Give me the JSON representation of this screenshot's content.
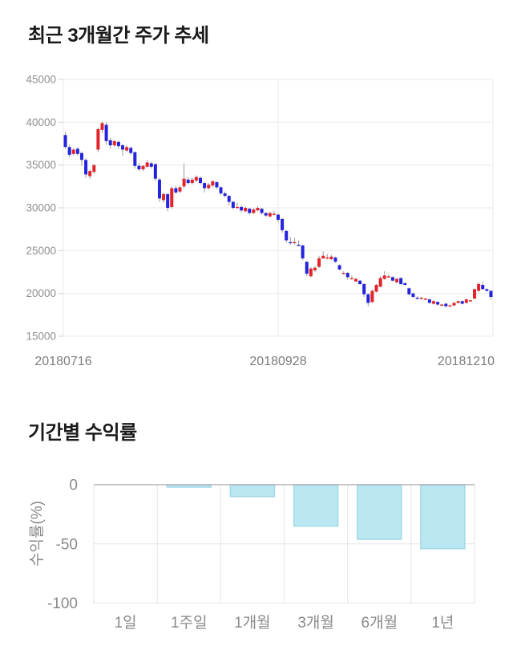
{
  "sections": {
    "price_trend": {
      "title": "최근 3개월간 주가 추세"
    },
    "returns": {
      "title": "기간별 수익률"
    }
  },
  "chart_data": [
    {
      "type": "candlestick",
      "title": "최근 3개월간 주가 추세",
      "x_tick_labels": [
        "20180716",
        "20180928",
        "20181210"
      ],
      "y_ticks": [
        45000,
        40000,
        35000,
        30000,
        25000,
        20000,
        15000
      ],
      "ylim": [
        15000,
        45000
      ],
      "grid": "on",
      "colors": {
        "up": "#e3242b",
        "down": "#2424dd",
        "wick": "#999999",
        "grid": "#e9e9e9",
        "tick": "#cccccc"
      },
      "candles": [
        [
          38500,
          38900,
          36900,
          37100
        ],
        [
          37100,
          37400,
          35900,
          36200
        ],
        [
          36300,
          37000,
          36100,
          36800
        ],
        [
          36900,
          37100,
          36100,
          36300
        ],
        [
          36400,
          36600,
          34900,
          35600
        ],
        [
          35600,
          35800,
          33500,
          33900
        ],
        [
          33700,
          34500,
          33400,
          34300
        ],
        [
          34200,
          35100,
          34000,
          35000
        ],
        [
          36800,
          39400,
          36500,
          39200
        ],
        [
          39100,
          40100,
          38800,
          39900
        ],
        [
          39700,
          40000,
          37400,
          37800
        ],
        [
          37900,
          38200,
          36900,
          37300
        ],
        [
          37300,
          37900,
          37100,
          37800
        ],
        [
          37700,
          37900,
          36900,
          37200
        ],
        [
          37300,
          37500,
          36100,
          36800
        ],
        [
          36700,
          37300,
          36500,
          37100
        ],
        [
          37000,
          37200,
          36200,
          36400
        ],
        [
          36500,
          36600,
          34600,
          34900
        ],
        [
          34900,
          35200,
          34300,
          34500
        ],
        [
          34500,
          35000,
          34300,
          34900
        ],
        [
          34800,
          35600,
          34700,
          35300
        ],
        [
          35200,
          35400,
          34600,
          34800
        ],
        [
          35100,
          35200,
          33100,
          33400
        ],
        [
          33300,
          33500,
          30700,
          31100
        ],
        [
          30900,
          31800,
          30600,
          31600
        ],
        [
          31600,
          31700,
          29600,
          30000
        ],
        [
          30100,
          32500,
          29900,
          32300
        ],
        [
          32300,
          32600,
          31600,
          31800
        ],
        [
          31900,
          32600,
          31700,
          32400
        ],
        [
          32500,
          35200,
          32300,
          33400
        ],
        [
          33300,
          33600,
          32700,
          32900
        ],
        [
          32900,
          33500,
          32700,
          33300
        ],
        [
          33200,
          33800,
          33000,
          33600
        ],
        [
          33500,
          33700,
          32700,
          32900
        ],
        [
          32900,
          33000,
          31800,
          32300
        ],
        [
          32300,
          32900,
          32100,
          32700
        ],
        [
          32600,
          33200,
          32400,
          33100
        ],
        [
          33000,
          33100,
          32200,
          32400
        ],
        [
          32400,
          32500,
          31500,
          31700
        ],
        [
          31700,
          31900,
          31200,
          31400
        ],
        [
          31400,
          31500,
          30300,
          30700
        ],
        [
          30700,
          30800,
          29800,
          30000
        ],
        [
          30000,
          30600,
          29900,
          30100
        ],
        [
          30100,
          30300,
          29500,
          29700
        ],
        [
          29600,
          30200,
          29500,
          30000
        ],
        [
          29900,
          30000,
          29200,
          29400
        ],
        [
          29400,
          30000,
          29300,
          29800
        ],
        [
          29700,
          30200,
          29600,
          30000
        ],
        [
          29900,
          30000,
          29200,
          29400
        ],
        [
          29400,
          29500,
          28900,
          29100
        ],
        [
          29000,
          29500,
          28900,
          29400
        ],
        [
          29300,
          29600,
          29100,
          29300
        ],
        [
          29200,
          29300,
          28300,
          28600
        ],
        [
          28700,
          28800,
          27100,
          27400
        ],
        [
          27300,
          27400,
          25900,
          26200
        ],
        [
          26000,
          26600,
          25700,
          25900
        ],
        [
          25900,
          26500,
          25700,
          26000
        ],
        [
          25700,
          26200,
          25500,
          25600
        ],
        [
          25600,
          25700,
          23900,
          24100
        ],
        [
          23700,
          23800,
          22000,
          22300
        ],
        [
          22000,
          23100,
          21900,
          22900
        ],
        [
          22700,
          23200,
          22500,
          23000
        ],
        [
          23100,
          24400,
          23000,
          24100
        ],
        [
          24100,
          24900,
          24000,
          24400
        ],
        [
          24200,
          24600,
          24000,
          24200
        ],
        [
          24000,
          24500,
          23900,
          24300
        ],
        [
          24200,
          24300,
          23600,
          23700
        ],
        [
          23300,
          23400,
          22700,
          22800
        ],
        [
          22300,
          22600,
          22200,
          22400
        ],
        [
          22400,
          22500,
          21600,
          21900
        ],
        [
          21800,
          22100,
          21600,
          21800
        ],
        [
          21400,
          21800,
          21300,
          21700
        ],
        [
          21500,
          21600,
          21000,
          21100
        ],
        [
          21100,
          21200,
          19600,
          19900
        ],
        [
          19900,
          20000,
          18500,
          18900
        ],
        [
          19000,
          20500,
          18900,
          20300
        ],
        [
          20200,
          21100,
          20100,
          21000
        ],
        [
          20800,
          22000,
          20700,
          21800
        ],
        [
          21700,
          22600,
          21600,
          22100
        ],
        [
          21900,
          22200,
          21800,
          22000
        ],
        [
          21900,
          22000,
          21400,
          21500
        ],
        [
          21300,
          21800,
          21200,
          21700
        ],
        [
          21800,
          21900,
          21000,
          21100
        ],
        [
          21200,
          21300,
          20900,
          21000
        ],
        [
          20600,
          20700,
          19800,
          19900
        ],
        [
          20000,
          20100,
          19500,
          19600
        ],
        [
          19500,
          19700,
          19300,
          19400
        ],
        [
          19400,
          19600,
          19300,
          19500
        ],
        [
          19400,
          19500,
          19200,
          19400
        ],
        [
          19300,
          19400,
          18800,
          18900
        ],
        [
          18800,
          19200,
          18700,
          19100
        ],
        [
          19000,
          19100,
          18600,
          18700
        ],
        [
          18700,
          18800,
          18500,
          18700
        ],
        [
          18800,
          18900,
          18400,
          18500
        ],
        [
          18600,
          18700,
          18500,
          18600
        ],
        [
          18600,
          19000,
          18500,
          18900
        ],
        [
          18900,
          19200,
          18800,
          19100
        ],
        [
          19100,
          19200,
          18700,
          18800
        ],
        [
          18900,
          19400,
          18800,
          19300
        ],
        [
          19200,
          19300,
          19000,
          19200
        ],
        [
          19400,
          20600,
          19300,
          20500
        ],
        [
          20300,
          21300,
          20200,
          21100
        ],
        [
          21000,
          21400,
          20400,
          20500
        ],
        [
          20500,
          20600,
          20200,
          20300
        ],
        [
          20300,
          20400,
          19300,
          19600
        ]
      ]
    },
    {
      "type": "bar",
      "title": "기간별 수익률",
      "categories": [
        "1일",
        "1주일",
        "1개월",
        "3개월",
        "6개월",
        "1년"
      ],
      "values": [
        0,
        -2,
        -10,
        -35,
        -46,
        -54
      ],
      "ylabel": "수익률(%)",
      "y_ticks": [
        0,
        -50,
        -100
      ],
      "ylim": [
        -100,
        0
      ],
      "grid": "on",
      "legend": "none",
      "colors": {
        "bar_fill": "#b9e8f2",
        "bar_border": "#a2d8e5",
        "grid": "#e4e4e4",
        "zero_line": "#a8a8a8"
      }
    }
  ]
}
